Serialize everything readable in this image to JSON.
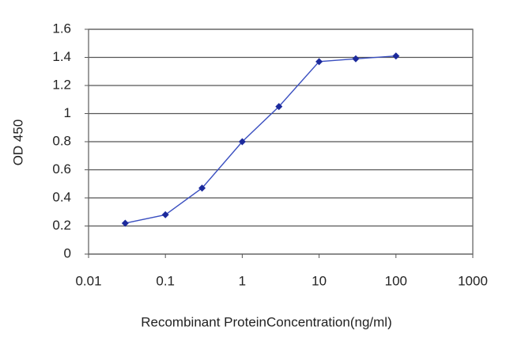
{
  "chart_data": {
    "type": "line",
    "x_label": "Recombinant ProteinConcentration(ng/ml)",
    "y_label": "OD 450",
    "x": [
      0.03,
      0.1,
      0.3,
      1,
      3,
      10,
      30,
      100
    ],
    "series": [
      {
        "color": "#1c2a9c",
        "values": [
          0.22,
          0.28,
          0.47,
          0.8,
          1.05,
          1.37,
          1.39,
          1.41
        ]
      }
    ],
    "xlim": [
      0.01,
      1000
    ],
    "xticks": [
      0.01,
      0.1,
      1,
      10,
      100,
      1000
    ],
    "xscale": "log",
    "ylim": [
      0,
      1.6
    ],
    "yticks": [
      0,
      0.2,
      0.4,
      0.6,
      0.8,
      1,
      1.2,
      1.4,
      1.6
    ],
    "grid": true
  }
}
